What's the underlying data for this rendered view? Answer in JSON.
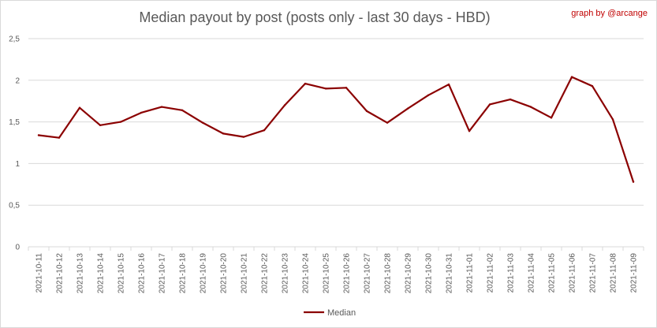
{
  "chart_data": {
    "type": "line",
    "title": "Median payout by post (posts only - last 30 days - HBD)",
    "credit": "graph by @arcange",
    "xlabel": "",
    "ylabel": "",
    "categories": [
      "2021-10-11",
      "2021-10-12",
      "2021-10-13",
      "2021-10-14",
      "2021-10-15",
      "2021-10-16",
      "2021-10-17",
      "2021-10-18",
      "2021-10-19",
      "2021-10-20",
      "2021-10-21",
      "2021-10-22",
      "2021-10-23",
      "2021-10-24",
      "2021-10-25",
      "2021-10-26",
      "2021-10-27",
      "2021-10-28",
      "2021-10-29",
      "2021-10-30",
      "2021-10-31",
      "2021-11-01",
      "2021-11-02",
      "2021-11-03",
      "2021-11-04",
      "2021-11-05",
      "2021-11-06",
      "2021-11-07",
      "2021-11-08",
      "2021-11-09"
    ],
    "series": [
      {
        "name": "Median",
        "color": "#8b0000",
        "values": [
          1.34,
          1.31,
          1.67,
          1.46,
          1.5,
          1.61,
          1.68,
          1.64,
          1.49,
          1.36,
          1.32,
          1.4,
          1.7,
          1.96,
          1.9,
          1.91,
          1.63,
          1.49,
          1.66,
          1.82,
          1.95,
          1.39,
          1.71,
          1.77,
          1.68,
          1.55,
          2.04,
          1.93,
          1.53,
          0.78
        ]
      }
    ],
    "y_ticks": [
      "0",
      "0,5",
      "1",
      "1,5",
      "2",
      "2,5"
    ],
    "ylim": [
      0,
      2.5
    ],
    "grid": true,
    "legend": "bottom-center",
    "colors": {
      "line": "#8b0000",
      "credit": "#c00000",
      "grid": "#d9d9d9",
      "text": "#595959"
    }
  }
}
